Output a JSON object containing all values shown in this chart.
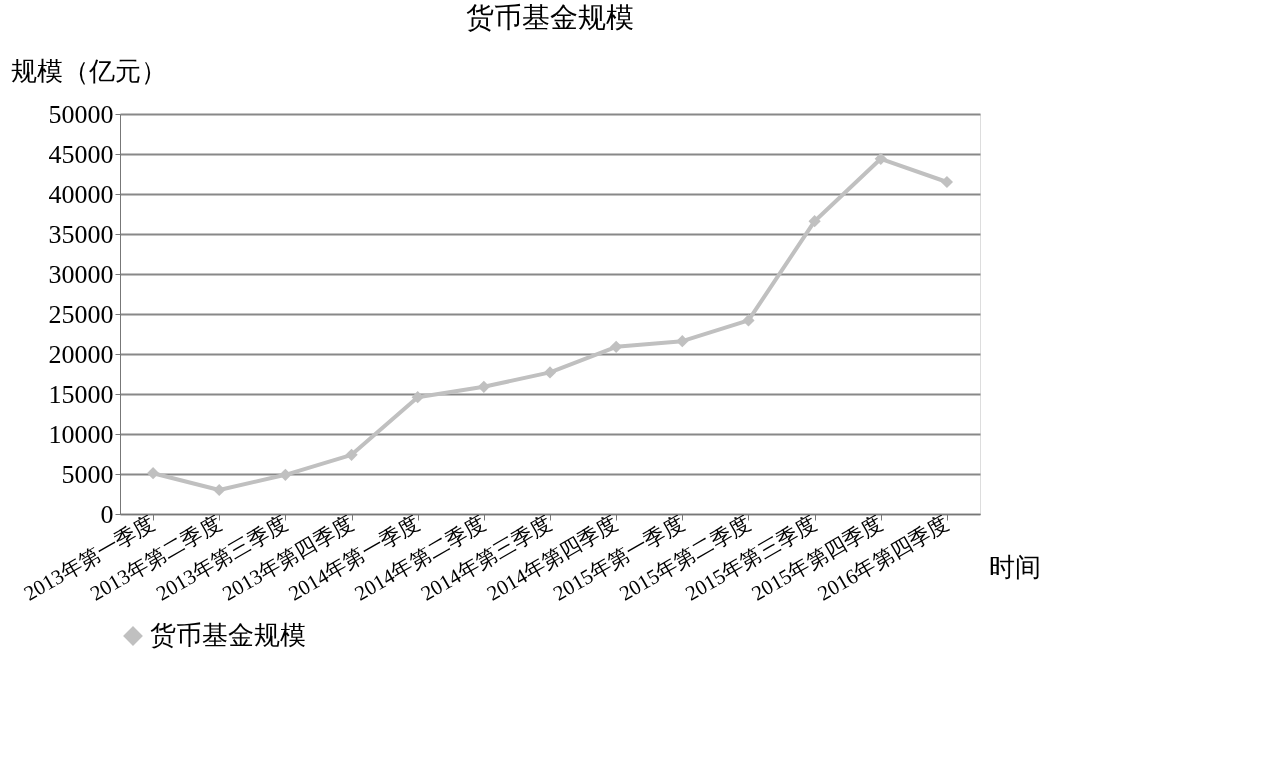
{
  "chart_data": {
    "type": "line",
    "title": "货币基金规模",
    "xlabel": "时间",
    "ylabel": "规模（亿元）",
    "categories": [
      "2013年第一季度",
      "2013年第二季度",
      "2013年第三季度",
      "2013年第四季度",
      "2014年第一季度",
      "2014年第二季度",
      "2014年第三季度",
      "2014年第四季度",
      "2015年第一季度",
      "2015年第二季度",
      "2015年第三季度",
      "2015年第四季度",
      "2016年第四季度"
    ],
    "series": [
      {
        "name": "货币基金规模",
        "color": "#c0c0c0",
        "values": [
          5100,
          3000,
          4900,
          7400,
          14600,
          15900,
          17700,
          20900,
          21600,
          24200,
          36600,
          44400,
          41500
        ]
      }
    ],
    "ylim": [
      0,
      50000
    ],
    "yticks": [
      0,
      5000,
      10000,
      15000,
      20000,
      25000,
      30000,
      35000,
      40000,
      45000,
      50000
    ],
    "grid": "y",
    "legend": "bottom",
    "marker": "diamond",
    "line_style": "solid"
  }
}
